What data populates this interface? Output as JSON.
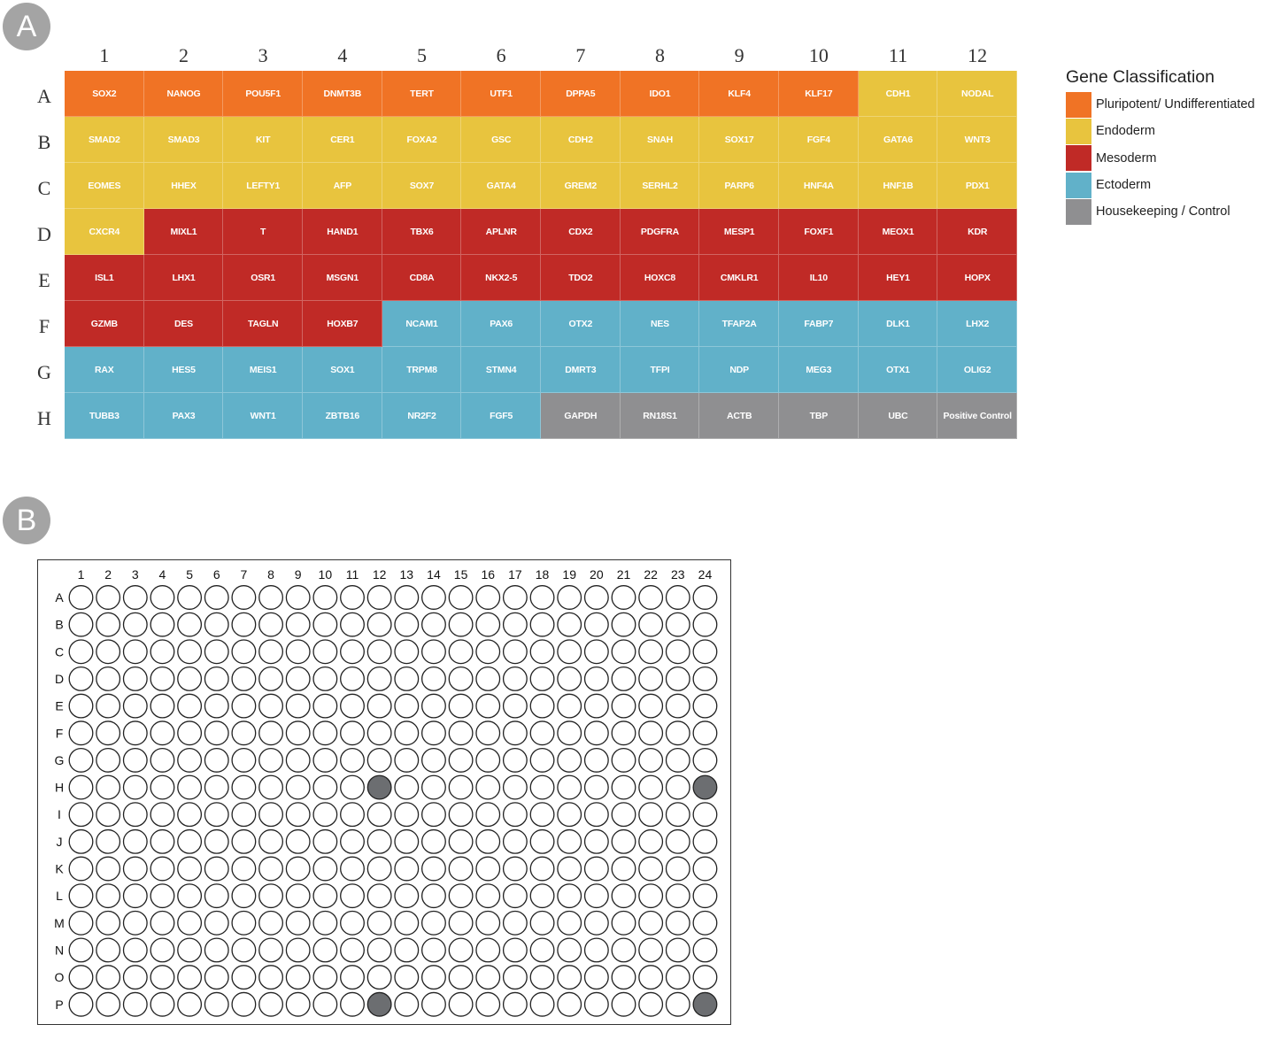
{
  "panel_a": {
    "badge": "A",
    "columns": [
      "1",
      "2",
      "3",
      "4",
      "5",
      "6",
      "7",
      "8",
      "9",
      "10",
      "11",
      "12"
    ],
    "rows": [
      "A",
      "B",
      "C",
      "D",
      "E",
      "F",
      "G",
      "H"
    ],
    "genes": [
      [
        "SOX2",
        "NANOG",
        "POU5F1",
        "DNMT3B",
        "TERT",
        "UTF1",
        "DPPA5",
        "IDO1",
        "KLF4",
        "KLF17",
        "CDH1",
        "NODAL"
      ],
      [
        "SMAD2",
        "SMAD3",
        "KIT",
        "CER1",
        "FOXA2",
        "GSC",
        "CDH2",
        "SNAH",
        "SOX17",
        "FGF4",
        "GATA6",
        "WNT3"
      ],
      [
        "EOMES",
        "HHEX",
        "LEFTY1",
        "AFP",
        "SOX7",
        "GATA4",
        "GREM2",
        "SERHL2",
        "PARP6",
        "HNF4A",
        "HNF1B",
        "PDX1"
      ],
      [
        "CXCR4",
        "MIXL1",
        "T",
        "HAND1",
        "TBX6",
        "APLNR",
        "CDX2",
        "PDGFRA",
        "MESP1",
        "FOXF1",
        "MEOX1",
        "KDR"
      ],
      [
        "ISL1",
        "LHX1",
        "OSR1",
        "MSGN1",
        "CD8A",
        "NKX2-5",
        "TDO2",
        "HOXC8",
        "CMKLR1",
        "IL10",
        "HEY1",
        "HOPX"
      ],
      [
        "GZMB",
        "DES",
        "TAGLN",
        "HOXB7",
        "NCAM1",
        "PAX6",
        "OTX2",
        "NES",
        "TFAP2A",
        "FABP7",
        "DLK1",
        "LHX2"
      ],
      [
        "RAX",
        "HES5",
        "MEIS1",
        "SOX1",
        "TRPM8",
        "STMN4",
        "DMRT3",
        "TFPI",
        "NDP",
        "MEG3",
        "OTX1",
        "OLIG2"
      ],
      [
        "TUBB3",
        "PAX3",
        "WNT1",
        "ZBTB16",
        "NR2F2",
        "FGF5",
        "GAPDH",
        "RN18S1",
        "ACTB",
        "TBP",
        "UBC",
        "Positive Control"
      ]
    ],
    "classes": [
      [
        "P",
        "P",
        "P",
        "P",
        "P",
        "P",
        "P",
        "P",
        "P",
        "P",
        "EN",
        "EN"
      ],
      [
        "EN",
        "EN",
        "EN",
        "EN",
        "EN",
        "EN",
        "EN",
        "EN",
        "EN",
        "EN",
        "EN",
        "EN"
      ],
      [
        "EN",
        "EN",
        "EN",
        "EN",
        "EN",
        "EN",
        "EN",
        "EN",
        "EN",
        "EN",
        "EN",
        "EN"
      ],
      [
        "EN",
        "M",
        "M",
        "M",
        "M",
        "M",
        "M",
        "M",
        "M",
        "M",
        "M",
        "M"
      ],
      [
        "M",
        "M",
        "M",
        "M",
        "M",
        "M",
        "M",
        "M",
        "M",
        "M",
        "M",
        "M"
      ],
      [
        "M",
        "M",
        "M",
        "M",
        "EC",
        "EC",
        "EC",
        "EC",
        "EC",
        "EC",
        "EC",
        "EC"
      ],
      [
        "EC",
        "EC",
        "EC",
        "EC",
        "EC",
        "EC",
        "EC",
        "EC",
        "EC",
        "EC",
        "EC",
        "EC"
      ],
      [
        "EC",
        "EC",
        "EC",
        "EC",
        "EC",
        "EC",
        "H",
        "H",
        "H",
        "H",
        "H",
        "H"
      ]
    ],
    "legend": {
      "title": "Gene Classification",
      "items": [
        {
          "key": "P",
          "label": "Pluripotent/ Undifferentiated",
          "color": "#f07325"
        },
        {
          "key": "EN",
          "label": "Endoderm",
          "color": "#e8c43e"
        },
        {
          "key": "M",
          "label": "Mesoderm",
          "color": "#c02a26"
        },
        {
          "key": "EC",
          "label": "Ectoderm",
          "color": "#61b1c9"
        },
        {
          "key": "H",
          "label": "Housekeeping / Control",
          "color": "#8f8f91"
        }
      ]
    }
  },
  "panel_b": {
    "badge": "B",
    "columns": [
      "1",
      "2",
      "3",
      "4",
      "5",
      "6",
      "7",
      "8",
      "9",
      "10",
      "11",
      "12",
      "13",
      "14",
      "15",
      "16",
      "17",
      "18",
      "19",
      "20",
      "21",
      "22",
      "23",
      "24"
    ],
    "rows": [
      "A",
      "B",
      "C",
      "D",
      "E",
      "F",
      "G",
      "H",
      "I",
      "J",
      "K",
      "L",
      "M",
      "N",
      "O",
      "P"
    ],
    "filled_wells": [
      "H12",
      "H24",
      "P12",
      "P24"
    ],
    "well_fill_color": "#6c6e71",
    "empty_well_color": "#ffffff"
  }
}
